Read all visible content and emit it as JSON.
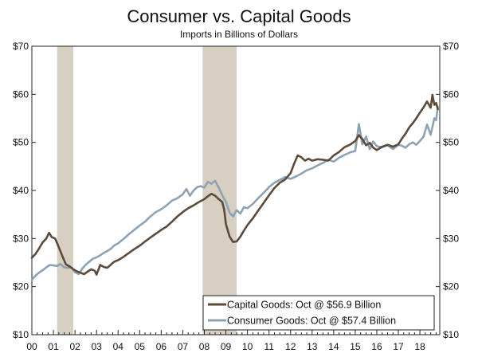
{
  "chart_data": {
    "type": "line",
    "title": "Consumer vs. Capital Goods",
    "subtitle": "Imports in Billions of Dollars",
    "xlabel": "",
    "ylabel": "",
    "x_tick_labels": [
      "00",
      "01",
      "02",
      "03",
      "04",
      "05",
      "06",
      "07",
      "08",
      "09",
      "10",
      "11",
      "12",
      "13",
      "14",
      "15",
      "16",
      "17",
      "18"
    ],
    "xlim": [
      2000.0,
      2018.92
    ],
    "ylim": [
      10,
      70
    ],
    "y_ticks": [
      10,
      20,
      30,
      40,
      50,
      60,
      70
    ],
    "y_tick_labels": [
      "$10",
      "$20",
      "$30",
      "$40",
      "$50",
      "$60",
      "$70"
    ],
    "grid": false,
    "legend_position": "bottom-right",
    "recessions": [
      {
        "start": 2001.17,
        "end": 2001.92
      },
      {
        "start": 2007.92,
        "end": 2009.5
      }
    ],
    "series": [
      {
        "name": "Capital Goods: Oct @ $56.9 Billion",
        "color": "#5c4a3a",
        "points": [
          [
            2000.0,
            26.0
          ],
          [
            2000.17,
            26.8
          ],
          [
            2000.33,
            27.9
          ],
          [
            2000.5,
            29.2
          ],
          [
            2000.67,
            30.0
          ],
          [
            2000.8,
            31.2
          ],
          [
            2000.92,
            30.3
          ],
          [
            2001.08,
            30.0
          ],
          [
            2001.25,
            28.2
          ],
          [
            2001.42,
            26.3
          ],
          [
            2001.58,
            24.6
          ],
          [
            2001.75,
            24.2
          ],
          [
            2001.92,
            23.6
          ],
          [
            2002.08,
            23.2
          ],
          [
            2002.25,
            22.9
          ],
          [
            2002.42,
            22.6
          ],
          [
            2002.58,
            23.1
          ],
          [
            2002.75,
            23.6
          ],
          [
            2002.92,
            23.3
          ],
          [
            2003.0,
            22.5
          ],
          [
            2003.17,
            24.5
          ],
          [
            2003.33,
            24.1
          ],
          [
            2003.5,
            23.9
          ],
          [
            2003.67,
            24.6
          ],
          [
            2003.83,
            25.2
          ],
          [
            2004.0,
            25.5
          ],
          [
            2004.25,
            26.2
          ],
          [
            2004.5,
            27.0
          ],
          [
            2004.75,
            27.8
          ],
          [
            2005.0,
            28.5
          ],
          [
            2005.25,
            29.4
          ],
          [
            2005.5,
            30.2
          ],
          [
            2005.75,
            31.0
          ],
          [
            2006.0,
            31.8
          ],
          [
            2006.25,
            32.5
          ],
          [
            2006.5,
            33.5
          ],
          [
            2006.75,
            34.6
          ],
          [
            2007.0,
            35.5
          ],
          [
            2007.25,
            36.3
          ],
          [
            2007.5,
            36.9
          ],
          [
            2007.75,
            37.6
          ],
          [
            2008.0,
            38.2
          ],
          [
            2008.17,
            38.8
          ],
          [
            2008.33,
            39.3
          ],
          [
            2008.5,
            38.9
          ],
          [
            2008.67,
            38.2
          ],
          [
            2008.83,
            37.6
          ],
          [
            2008.92,
            36.0
          ],
          [
            2009.0,
            33.0
          ],
          [
            2009.17,
            30.4
          ],
          [
            2009.33,
            29.3
          ],
          [
            2009.5,
            29.4
          ],
          [
            2009.67,
            30.4
          ],
          [
            2009.83,
            31.6
          ],
          [
            2010.0,
            32.8
          ],
          [
            2010.25,
            34.2
          ],
          [
            2010.5,
            35.8
          ],
          [
            2010.75,
            37.4
          ],
          [
            2011.0,
            39.0
          ],
          [
            2011.25,
            40.5
          ],
          [
            2011.5,
            41.6
          ],
          [
            2011.75,
            42.3
          ],
          [
            2012.0,
            43.6
          ],
          [
            2012.17,
            45.6
          ],
          [
            2012.33,
            47.3
          ],
          [
            2012.5,
            46.9
          ],
          [
            2012.67,
            46.2
          ],
          [
            2012.83,
            46.6
          ],
          [
            2013.0,
            46.2
          ],
          [
            2013.25,
            46.5
          ],
          [
            2013.5,
            46.4
          ],
          [
            2013.75,
            46.2
          ],
          [
            2014.0,
            47.3
          ],
          [
            2014.25,
            48.0
          ],
          [
            2014.5,
            49.0
          ],
          [
            2014.75,
            49.5
          ],
          [
            2015.0,
            50.3
          ],
          [
            2015.17,
            51.5
          ],
          [
            2015.33,
            50.7
          ],
          [
            2015.5,
            49.4
          ],
          [
            2015.67,
            49.9
          ],
          [
            2015.83,
            48.9
          ],
          [
            2016.0,
            48.4
          ],
          [
            2016.25,
            49.1
          ],
          [
            2016.5,
            49.5
          ],
          [
            2016.75,
            49.1
          ],
          [
            2017.0,
            49.6
          ],
          [
            2017.17,
            50.8
          ],
          [
            2017.33,
            51.8
          ],
          [
            2017.5,
            53.1
          ],
          [
            2017.67,
            54.0
          ],
          [
            2017.83,
            55.0
          ],
          [
            2018.0,
            56.2
          ],
          [
            2018.17,
            57.3
          ],
          [
            2018.33,
            58.5
          ],
          [
            2018.5,
            57.2
          ],
          [
            2018.58,
            59.9
          ],
          [
            2018.67,
            57.8
          ],
          [
            2018.75,
            58.2
          ],
          [
            2018.83,
            56.9
          ]
        ]
      },
      {
        "name": "Consumer Goods: Oct @ $57.4 Billion",
        "color": "#8ea2b6",
        "points": [
          [
            2000.0,
            21.4
          ],
          [
            2000.17,
            22.3
          ],
          [
            2000.33,
            22.9
          ],
          [
            2000.5,
            23.4
          ],
          [
            2000.67,
            24.0
          ],
          [
            2000.83,
            24.5
          ],
          [
            2001.0,
            24.4
          ],
          [
            2001.17,
            24.3
          ],
          [
            2001.33,
            24.7
          ],
          [
            2001.5,
            24.0
          ],
          [
            2001.67,
            23.9
          ],
          [
            2001.83,
            24.0
          ],
          [
            2002.0,
            23.0
          ],
          [
            2002.17,
            22.6
          ],
          [
            2002.33,
            23.7
          ],
          [
            2002.5,
            24.6
          ],
          [
            2002.67,
            25.2
          ],
          [
            2002.83,
            25.8
          ],
          [
            2003.0,
            26.1
          ],
          [
            2003.17,
            26.5
          ],
          [
            2003.33,
            27.0
          ],
          [
            2003.5,
            27.4
          ],
          [
            2003.67,
            27.9
          ],
          [
            2003.83,
            28.6
          ],
          [
            2004.0,
            29.0
          ],
          [
            2004.25,
            29.9
          ],
          [
            2004.5,
            30.9
          ],
          [
            2004.75,
            31.8
          ],
          [
            2005.0,
            32.7
          ],
          [
            2005.25,
            33.5
          ],
          [
            2005.5,
            34.6
          ],
          [
            2005.75,
            35.5
          ],
          [
            2006.0,
            36.1
          ],
          [
            2006.25,
            36.9
          ],
          [
            2006.5,
            37.9
          ],
          [
            2006.75,
            38.4
          ],
          [
            2007.0,
            39.2
          ],
          [
            2007.17,
            40.3
          ],
          [
            2007.33,
            38.9
          ],
          [
            2007.5,
            40.0
          ],
          [
            2007.67,
            40.7
          ],
          [
            2007.83,
            40.9
          ],
          [
            2008.0,
            40.6
          ],
          [
            2008.17,
            41.8
          ],
          [
            2008.33,
            41.4
          ],
          [
            2008.5,
            42.0
          ],
          [
            2008.67,
            40.6
          ],
          [
            2008.83,
            39.0
          ],
          [
            2009.0,
            37.6
          ],
          [
            2009.17,
            35.4
          ],
          [
            2009.33,
            34.6
          ],
          [
            2009.5,
            35.9
          ],
          [
            2009.67,
            35.2
          ],
          [
            2009.83,
            36.5
          ],
          [
            2010.0,
            36.3
          ],
          [
            2010.25,
            37.2
          ],
          [
            2010.5,
            38.4
          ],
          [
            2010.75,
            39.5
          ],
          [
            2011.0,
            40.7
          ],
          [
            2011.25,
            41.6
          ],
          [
            2011.5,
            42.2
          ],
          [
            2011.75,
            42.8
          ],
          [
            2012.0,
            42.4
          ],
          [
            2012.25,
            42.9
          ],
          [
            2012.5,
            43.5
          ],
          [
            2012.75,
            44.2
          ],
          [
            2013.0,
            44.6
          ],
          [
            2013.25,
            45.2
          ],
          [
            2013.5,
            45.7
          ],
          [
            2013.75,
            46.4
          ],
          [
            2014.0,
            46.0
          ],
          [
            2014.25,
            46.8
          ],
          [
            2014.5,
            47.4
          ],
          [
            2014.75,
            47.9
          ],
          [
            2015.0,
            48.2
          ],
          [
            2015.17,
            53.8
          ],
          [
            2015.33,
            49.6
          ],
          [
            2015.5,
            51.2
          ],
          [
            2015.67,
            48.6
          ],
          [
            2015.83,
            50.2
          ],
          [
            2016.0,
            49.2
          ],
          [
            2016.25,
            49.0
          ],
          [
            2016.5,
            49.4
          ],
          [
            2016.75,
            48.6
          ],
          [
            2017.0,
            49.5
          ],
          [
            2017.17,
            49.3
          ],
          [
            2017.33,
            48.9
          ],
          [
            2017.5,
            49.6
          ],
          [
            2017.67,
            50.0
          ],
          [
            2017.83,
            49.5
          ],
          [
            2018.0,
            50.3
          ],
          [
            2018.17,
            51.2
          ],
          [
            2018.33,
            53.7
          ],
          [
            2018.5,
            51.6
          ],
          [
            2018.67,
            55.0
          ],
          [
            2018.75,
            54.6
          ],
          [
            2018.83,
            57.4
          ]
        ]
      }
    ]
  }
}
